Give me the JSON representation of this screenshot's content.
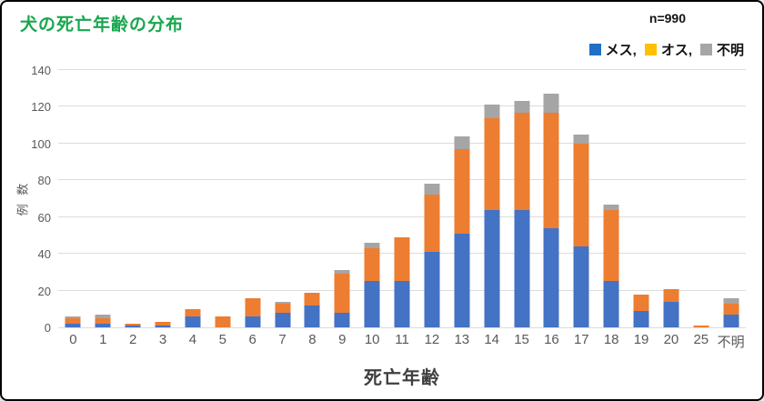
{
  "header": {
    "title": "犬の死亡年齢の分布",
    "title_color": "#17A74D",
    "n_label": "n=990"
  },
  "legend": {
    "items": [
      {
        "key": "female",
        "label": "メス,",
        "swatch_color": "#1F70C5"
      },
      {
        "key": "male",
        "label": "オス,",
        "swatch_color": "#FFC000"
      },
      {
        "key": "unknown",
        "label": "不明",
        "swatch_color": "#A6A6A6"
      }
    ]
  },
  "chart_data": {
    "type": "bar",
    "stacked": true,
    "title": "犬の死亡年齢の分布",
    "n": "n=990",
    "xlabel": "死亡年齢",
    "ylabel": "例 数",
    "ylim": [
      0,
      140
    ],
    "ytick_step": 20,
    "grid": true,
    "legend_position": "top-right",
    "categories": [
      "0",
      "1",
      "2",
      "3",
      "4",
      "5",
      "6",
      "7",
      "8",
      "9",
      "10",
      "11",
      "12",
      "13",
      "14",
      "15",
      "16",
      "17",
      "18",
      "19",
      "20",
      "25",
      "不明"
    ],
    "series": [
      {
        "key": "female",
        "name": "メス",
        "color": "#4472C4",
        "values": [
          2,
          2,
          1,
          1,
          6,
          0,
          6,
          8,
          12,
          8,
          25,
          25,
          41,
          51,
          64,
          64,
          54,
          44,
          25,
          9,
          14,
          0,
          7
        ]
      },
      {
        "key": "male",
        "name": "オス",
        "color": "#ED7D31",
        "values": [
          3,
          3,
          1,
          2,
          4,
          6,
          10,
          5,
          7,
          21,
          18,
          24,
          31,
          46,
          50,
          53,
          63,
          56,
          39,
          9,
          7,
          1,
          6
        ]
      },
      {
        "key": "unknown",
        "name": "不明",
        "color": "#A5A5A5",
        "values": [
          1,
          2,
          0,
          0,
          0,
          0,
          0,
          1,
          0,
          2,
          3,
          0,
          6,
          7,
          7,
          6,
          10,
          5,
          3,
          0,
          0,
          0,
          3
        ]
      }
    ],
    "totals": [
      6,
      7,
      2,
      3,
      10,
      6,
      16,
      14,
      19,
      31,
      46,
      49,
      78,
      104,
      121,
      123,
      127,
      105,
      67,
      18,
      21,
      1,
      16
    ]
  }
}
